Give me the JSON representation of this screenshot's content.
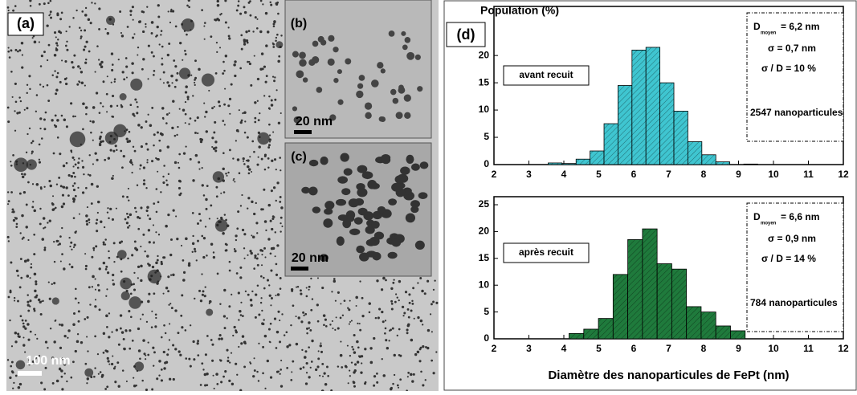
{
  "panels": {
    "a_label": "(a)",
    "a_scale": "100 nm",
    "b_label": "(b)",
    "b_scale": "20 nm",
    "c_label": "(c)",
    "c_scale": "20 nm",
    "d_label": "(d)"
  },
  "chart_data": [
    {
      "type": "histogram",
      "ylabel": "Population (%)",
      "annotation": "avant recuit",
      "stats": {
        "d_symbol": "D",
        "d_sub": "moyen",
        "d_value": "= 6,2 nm",
        "sigma": "σ   = 0,7 nm",
        "ratio": "σ / D =  10 %",
        "count": "2547 nanoparticules"
      },
      "bins": [
        3.55,
        3.95,
        4.35,
        4.75,
        5.15,
        5.55,
        5.95,
        6.35,
        6.75,
        7.15,
        7.55,
        7.95,
        8.35,
        8.75,
        9.15,
        9.55
      ],
      "values": [
        0.3,
        0.2,
        1.0,
        2.5,
        7.5,
        14.5,
        21,
        21.5,
        15,
        9.8,
        4.2,
        1.8,
        0.5,
        0,
        0.1
      ],
      "color": "#3fc5d0",
      "xlim": [
        2,
        12
      ],
      "xticks": [
        2,
        3,
        4,
        5,
        6,
        7,
        8,
        9,
        10,
        11,
        12
      ],
      "ylim": [
        0,
        29
      ],
      "yticks": [
        0,
        5,
        10,
        15,
        20
      ]
    },
    {
      "type": "histogram",
      "xlabel": "Diamètre des nanoparticules de FePt (nm)",
      "annotation": "après recuit",
      "stats": {
        "d_symbol": "D",
        "d_sub": "moyen",
        "d_value": "= 6,6 nm",
        "sigma": "σ   = 0,9 nm",
        "ratio": "σ / D  = 14 %",
        "count": "784 nanoparticules"
      },
      "bins": [
        4.15,
        4.57,
        4.99,
        5.41,
        5.83,
        6.25,
        6.67,
        7.09,
        7.51,
        7.93,
        8.35,
        8.77,
        9.19
      ],
      "values": [
        1,
        1.8,
        3.8,
        12,
        18.5,
        20.5,
        14,
        13,
        6,
        5,
        2.4,
        1.5
      ],
      "color": "#1f7a3c",
      "xlim": [
        2,
        12
      ],
      "xticks": [
        2,
        3,
        4,
        5,
        6,
        7,
        8,
        9,
        10,
        11,
        12
      ],
      "ylim": [
        0,
        26.5
      ],
      "yticks": [
        0,
        5,
        10,
        15,
        20,
        25
      ]
    }
  ]
}
